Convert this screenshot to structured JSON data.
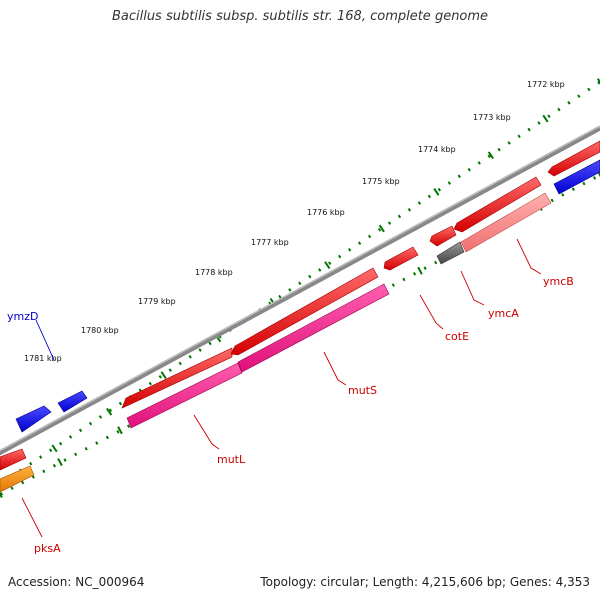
{
  "title": "Bacillus subtilis subsp. subtilis str. 168, complete genome",
  "footer": {
    "accession": "Accession: NC_000964",
    "summary": "Topology: circular; Length: 4,215,606 bp; Genes: 4,353"
  },
  "kbp_labels": [
    "1772 kbp",
    "1773 kbp",
    "1774 kbp",
    "1775 kbp",
    "1776 kbp",
    "1777 kbp",
    "1778 kbp",
    "1779 kbp",
    "1780 kbp",
    "1781 kbp"
  ],
  "gene_labels": {
    "ymzD": "ymzD",
    "pksA": "pksA",
    "mutL": "mutL",
    "mutS": "mutS",
    "cotE": "cotE",
    "ymcA": "ymcA",
    "ymcB": "ymcB"
  },
  "colors": {
    "forward_gene": "#ff0000",
    "reverse_gene_blue": "#0000ff",
    "pink_gene": "#ff1493",
    "light_pink_gene": "#f08080",
    "orange_gene": "#ff8c00",
    "gray_gene": "#555555",
    "backbone": "#888888",
    "tick_green": "#007700",
    "label_red": "#cc0000",
    "label_blue": "#0000cc"
  }
}
